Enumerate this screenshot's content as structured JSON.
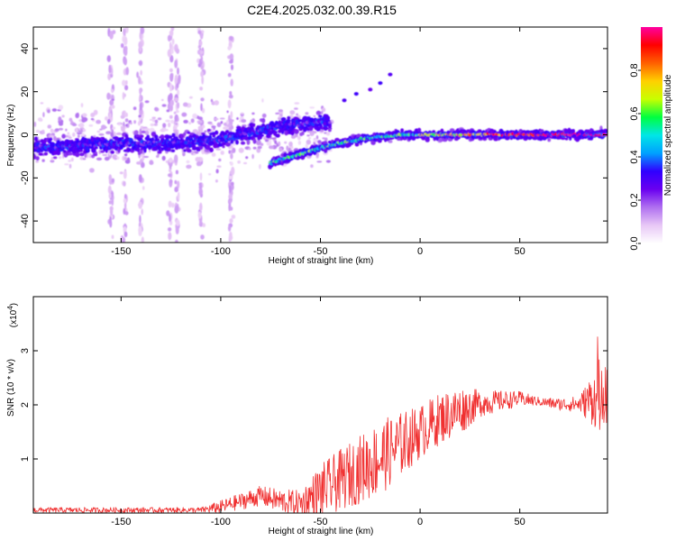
{
  "figure": {
    "title": "C2E4.2025.032.00.39.R15"
  },
  "chart_data": [
    {
      "type": "heatmap",
      "xlabel": "Height of straight line (km)",
      "ylabel": "Frequency (Hz)",
      "xlim": [
        -194,
        94
      ],
      "ylim": [
        -50,
        50
      ],
      "xticks": [
        -150,
        -100,
        -50,
        0,
        50
      ],
      "yticks": [
        -40,
        -20,
        0,
        20,
        40
      ],
      "grid": false,
      "colorbar": {
        "label": "Normalized spectral amplitude",
        "range": [
          0,
          1
        ],
        "ticks": [
          "0.0",
          "0.2",
          "0.4",
          "0.6",
          "0.8"
        ],
        "colors": [
          "#ffffff",
          "#e8c8f6",
          "#b070f0",
          "#6a00f0",
          "#3000ff",
          "#00a0ff",
          "#00e6e6",
          "#00ff40",
          "#c8ff00",
          "#ffd000",
          "#ff6000",
          "#ff0000",
          "#ff00a0"
        ]
      },
      "ridges": [
        {
          "name": "",
          "points": [
            [
              -194,
              -6
            ],
            [
              -170,
              -5
            ],
            [
              -150,
              -4
            ],
            [
              -130,
              -4
            ],
            [
              -110,
              -3
            ],
            [
              -100,
              -2
            ],
            [
              -90,
              0
            ],
            [
              -80,
              2
            ],
            [
              -70,
              4
            ],
            [
              -60,
              5
            ],
            [
              -50,
              6
            ],
            [
              -45,
              6
            ]
          ],
          "amplitude": 0.35,
          "spread": 4
        },
        {
          "name": "",
          "points": [
            [
              -75,
              -13
            ],
            [
              -60,
              -9
            ],
            [
              -50,
              -6
            ],
            [
              -40,
              -4
            ],
            [
              -30,
              -2
            ],
            [
              -20,
              -1
            ],
            [
              -10,
              0
            ],
            [
              0,
              0
            ],
            [
              10,
              0
            ],
            [
              20,
              0
            ],
            [
              40,
              0
            ],
            [
              60,
              0
            ],
            [
              80,
              0
            ],
            [
              94,
              0
            ]
          ],
          "amplitude": 0.7,
          "spread": 2
        }
      ],
      "vertical_streaks": [
        -155,
        -148,
        -140,
        -125,
        -122,
        -110,
        -95
      ],
      "isolated_blobs": [
        [
          -38,
          16
        ],
        [
          -32,
          19
        ],
        [
          -25,
          21
        ],
        [
          -20,
          24
        ],
        [
          -15,
          28
        ]
      ]
    },
    {
      "type": "line",
      "xlabel": "Height of straight line (km)",
      "ylabel": "SNR (10 * v/v)",
      "y_multiplier": "(x10",
      "y_multiplier_exp": "4",
      "y_multiplier_close": ")",
      "xlim": [
        -194,
        94
      ],
      "ylim": [
        0,
        4
      ],
      "xticks": [
        -150,
        -100,
        -50,
        0,
        50
      ],
      "yticks": [
        1,
        2,
        3
      ],
      "grid": false,
      "series": [
        {
          "color": "#f03030",
          "trend": {
            "x": [
              -194,
              -150,
              -110,
              -100,
              -90,
              -80,
              -70,
              -60,
              -50,
              -40,
              -30,
              -20,
              -10,
              0,
              10,
              20,
              30,
              40,
              50,
              60,
              70,
              80,
              90,
              94
            ],
            "y": [
              0.05,
              0.05,
              0.05,
              0.1,
              0.2,
              0.3,
              0.2,
              0.15,
              0.35,
              0.55,
              0.75,
              0.95,
              1.2,
              1.45,
              1.7,
              1.85,
              2.0,
              2.05,
              2.1,
              2.05,
              2.0,
              2.0,
              2.1,
              2.5
            ]
          },
          "noise": {
            "x": [
              -194,
              -110,
              -100,
              -60,
              -50,
              -20,
              0,
              20,
              30,
              60,
              80,
              94
            ],
            "amp": [
              0.05,
              0.05,
              0.12,
              0.25,
              0.5,
              0.7,
              0.5,
              0.45,
              0.25,
              0.08,
              0.15,
              0.9
            ]
          }
        }
      ]
    }
  ]
}
